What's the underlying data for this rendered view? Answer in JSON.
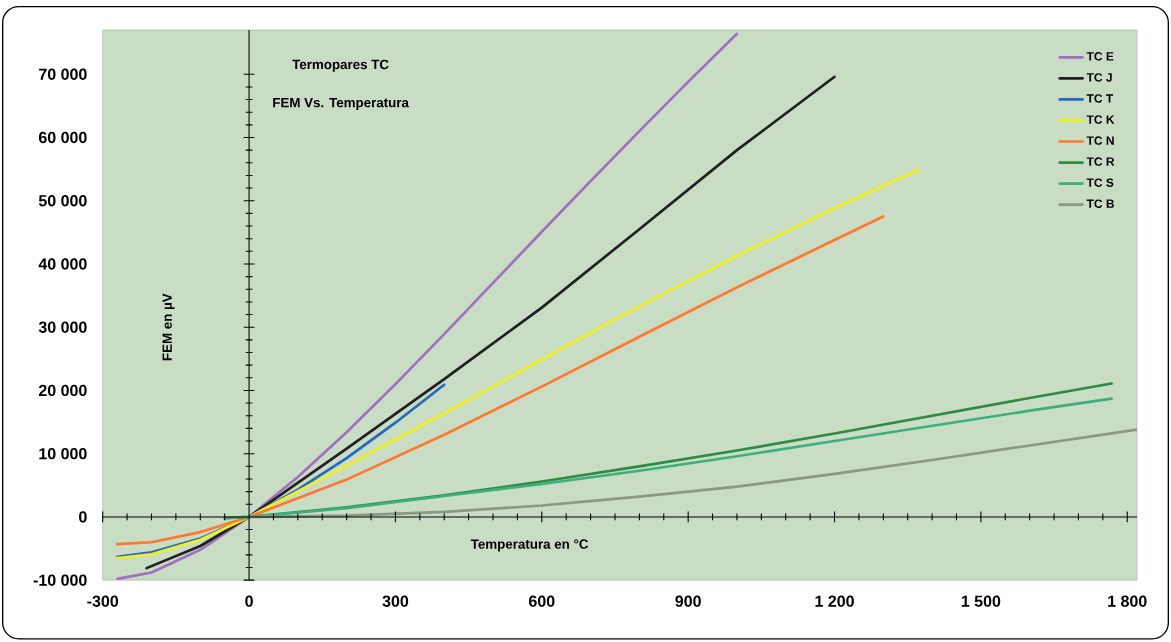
{
  "chart_data": {
    "type": "line",
    "title": "Termopares TC",
    "subtitle": "FEM Vs. Temperatura",
    "xlabel": "Temperatura en °C",
    "ylabel": "FEM en µV",
    "xlim": [
      -300,
      1820
    ],
    "ylim": [
      -10000,
      77000
    ],
    "xticks": [
      -300,
      0,
      300,
      600,
      900,
      {
        "value": 1200,
        "label": "1 200"
      },
      {
        "value": 1500,
        "label": "1 500"
      },
      {
        "value": 1800,
        "label": "1 800"
      }
    ],
    "yticks": [
      {
        "value": -10000,
        "label": "-10 000"
      },
      0,
      {
        "value": 10000,
        "label": "10 000"
      },
      {
        "value": 20000,
        "label": "20 000"
      },
      {
        "value": 30000,
        "label": "30 000"
      },
      {
        "value": 40000,
        "label": "40 000"
      },
      {
        "value": 50000,
        "label": "50 000"
      },
      {
        "value": 60000,
        "label": "60 000"
      },
      {
        "value": 70000,
        "label": "70 000"
      }
    ],
    "legend": "top right",
    "series": [
      {
        "name": "TC E",
        "color": "#a070c0",
        "x": [
          -270,
          -200,
          -100,
          0,
          100,
          200,
          300,
          400,
          500,
          600,
          700,
          800,
          900,
          1000
        ],
        "values": [
          -9800,
          -8800,
          -5200,
          0,
          6300,
          13400,
          21000,
          28900,
          37000,
          45100,
          53100,
          61000,
          68800,
          76400
        ]
      },
      {
        "name": "TC J",
        "color": "#202020",
        "x": [
          -210,
          -100,
          0,
          200,
          400,
          600,
          800,
          1000,
          1200
        ],
        "values": [
          -8100,
          -4600,
          0,
          10800,
          21800,
          33100,
          45500,
          58000,
          69600
        ]
      },
      {
        "name": "TC T",
        "color": "#2468c0",
        "x": [
          -270,
          -200,
          -100,
          0,
          100,
          200,
          300,
          400
        ],
        "values": [
          -6300,
          -5600,
          -3400,
          0,
          4300,
          9300,
          14900,
          20900
        ]
      },
      {
        "name": "TC K",
        "color": "#f0f020",
        "x": [
          -270,
          -200,
          -100,
          0,
          200,
          400,
          600,
          800,
          1000,
          1200,
          1372
        ],
        "values": [
          -6500,
          -5900,
          -3600,
          0,
          8100,
          16400,
          24900,
          33300,
          41300,
          48800,
          54900
        ]
      },
      {
        "name": "TC N",
        "color": "#ff7830",
        "x": [
          -270,
          -200,
          -100,
          0,
          200,
          400,
          600,
          800,
          1000,
          1200,
          1300
        ],
        "values": [
          -4300,
          -4000,
          -2400,
          0,
          5900,
          13000,
          20600,
          28500,
          36300,
          43800,
          47500
        ]
      },
      {
        "name": "TC R",
        "color": "#2e8b44",
        "x": [
          -50,
          0,
          200,
          400,
          600,
          800,
          1000,
          1200,
          1400,
          1600,
          1768
        ],
        "values": [
          -200,
          0,
          1500,
          3400,
          5600,
          8000,
          10500,
          13200,
          16000,
          18800,
          21100
        ]
      },
      {
        "name": "TC S",
        "color": "#3cb07c",
        "x": [
          -50,
          0,
          200,
          400,
          600,
          800,
          1000,
          1200,
          1400,
          1600,
          1768
        ],
        "values": [
          -200,
          0,
          1400,
          3300,
          5200,
          7300,
          9600,
          12000,
          14400,
          16800,
          18700
        ]
      },
      {
        "name": "TC B",
        "color": "#8a9a80",
        "x": [
          0,
          200,
          400,
          600,
          800,
          1000,
          1200,
          1400,
          1600,
          1820
        ],
        "values": [
          0,
          200,
          800,
          1800,
          3200,
          4800,
          6800,
          9000,
          11300,
          13800
        ]
      }
    ]
  }
}
